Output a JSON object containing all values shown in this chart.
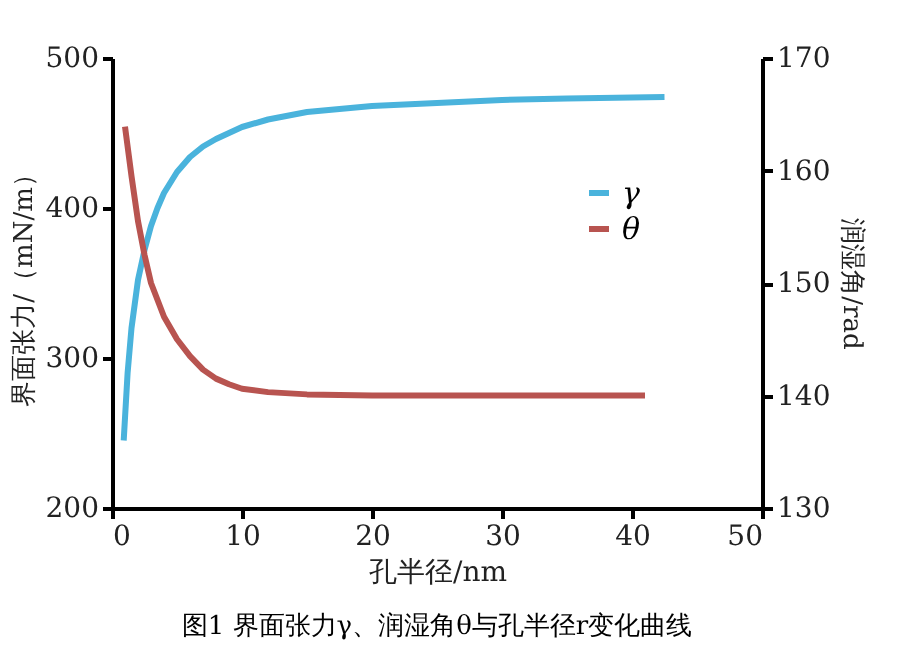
{
  "chart_data": {
    "type": "line",
    "xlabel": "孔半径/nm",
    "ylabel": "界面张力/（mN/m）",
    "y2label": "润湿角/rad",
    "xlim": [
      0,
      50
    ],
    "xticks": [
      0,
      10,
      20,
      30,
      40,
      50
    ],
    "ylim": [
      200,
      500
    ],
    "yticks": [
      200,
      300,
      400,
      500
    ],
    "y2lim": [
      130,
      170
    ],
    "y2ticks": [
      130,
      140,
      150,
      160,
      170
    ],
    "grid": false,
    "legend": "top right",
    "marker": "none",
    "line_style": "solid",
    "annotations": [
      "图1 界面张力γ、润湿角θ与孔半径r变化曲线"
    ],
    "series": [
      {
        "name": "γ",
        "color": "#4ab3dc",
        "x": [
          0.9,
          1.2,
          1.5,
          2,
          2.5,
          3,
          3.5,
          4,
          5,
          6,
          7,
          8,
          10,
          12,
          15,
          20,
          25,
          30,
          35,
          42.5
        ],
        "values": [
          245,
          290,
          320,
          352,
          372,
          388,
          400,
          410,
          424,
          434,
          441,
          446,
          454,
          459,
          464,
          468,
          470,
          472,
          473,
          474
        ]
      },
      {
        "name": "θ",
        "color": "#b85450",
        "axis": "y2",
        "x": [
          1,
          1.5,
          2,
          2.5,
          3,
          4,
          5,
          6,
          7,
          8,
          9,
          10,
          12,
          15,
          20,
          30,
          41
        ],
        "values": [
          163.9,
          159.5,
          155.5,
          152.5,
          150,
          147,
          145,
          143.5,
          142.3,
          141.5,
          141,
          140.6,
          140.3,
          140.1,
          140,
          140,
          140
        ]
      }
    ]
  }
}
